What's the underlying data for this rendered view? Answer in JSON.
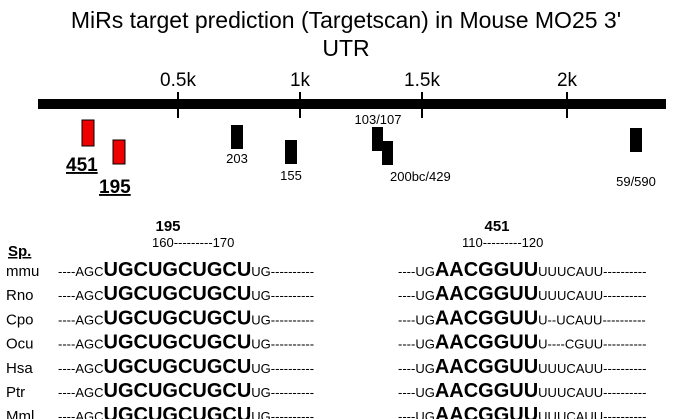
{
  "title_line1": "MiRs target prediction (Targetscan) in Mouse MO25 3'",
  "title_line2": "UTR",
  "scale_labels": [
    "0.5k",
    "1k",
    "1.5k",
    "2k"
  ],
  "sites": [
    "451",
    "195",
    "203",
    "155",
    "103/107",
    "200bc/429",
    "59/590"
  ],
  "alignment": {
    "species_header": "Sp.",
    "left_title": "195",
    "left_positions": "160---------170",
    "right_title": "451",
    "right_positions": "110---------120",
    "rows": [
      {
        "species": "mmu",
        "left": [
          "----AGC",
          "UGCUGCUGCU",
          "UG----------"
        ],
        "right": [
          "----UG",
          "AACGGUU",
          "UUUCAUU----------"
        ]
      },
      {
        "species": "Rno",
        "left": [
          "----AGC",
          "UGCUGCUGCU",
          "UG----------"
        ],
        "right": [
          "----UG",
          "AACGGUU",
          "UUUCAUU----------"
        ]
      },
      {
        "species": "Cpo",
        "left": [
          "----AGC",
          "UGCUGCUGCU",
          "UG----------"
        ],
        "right": [
          "----UG",
          "AACGGUU",
          "U--UCAUU----------"
        ]
      },
      {
        "species": "Ocu",
        "left": [
          "----AGC",
          "UGCUGCUGCU",
          "UG----------"
        ],
        "right": [
          "----UG",
          "AACGGUU",
          "U----CGUU----------"
        ]
      },
      {
        "species": "Hsa",
        "left": [
          "----AGC",
          "UGCUGCUGCU",
          "UG----------"
        ],
        "right": [
          "----UG",
          "AACGGUU",
          "UUUCAUU----------"
        ]
      },
      {
        "species": "Ptr",
        "left": [
          "----AGC",
          "UGCUGCUGCU",
          "UG----------"
        ],
        "right": [
          "----UG",
          "AACGGUU",
          "UUUCAUU----------"
        ]
      },
      {
        "species": "Mml",
        "left": [
          "----AGC",
          "UGCUGCUGCU",
          "UG----------"
        ],
        "right": [
          "----UG",
          "AACGGUU",
          "UUUCAUU----------"
        ]
      }
    ]
  }
}
